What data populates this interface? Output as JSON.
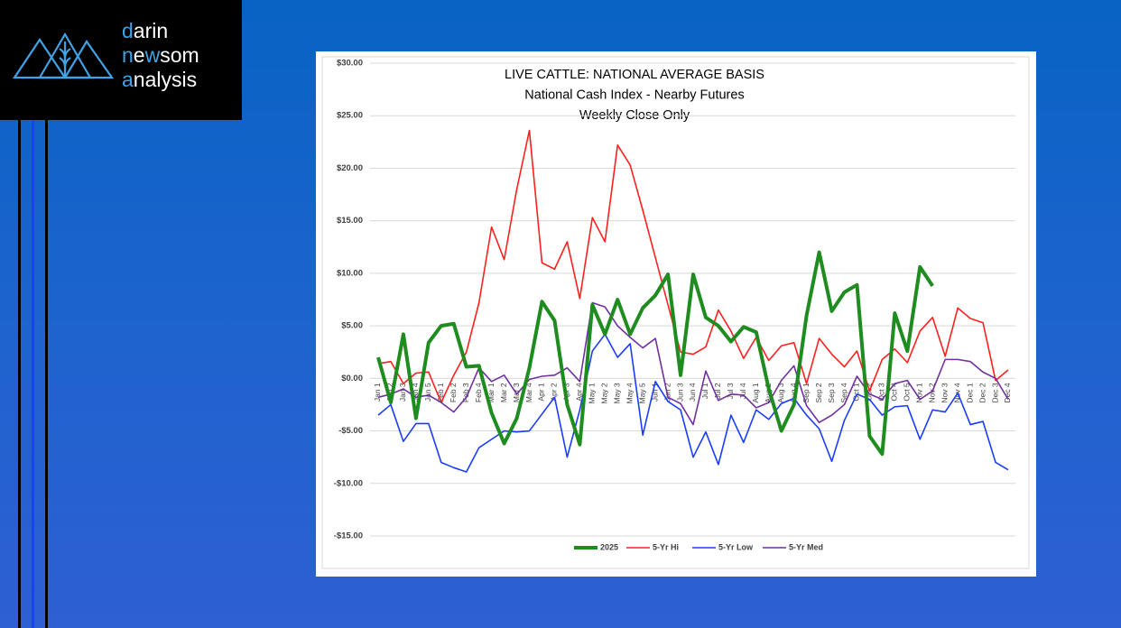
{
  "logo": {
    "lines": [
      [
        {
          "text": "d",
          "accent": true
        },
        {
          "text": "arin",
          "accent": false
        }
      ],
      [
        {
          "text": "n",
          "accent": true
        },
        {
          "text": "e",
          "accent": false
        },
        {
          "text": "w",
          "accent": true
        },
        {
          "text": "som",
          "accent": false
        }
      ],
      [
        {
          "text": "a",
          "accent": true
        },
        {
          "text": "nalysis",
          "accent": false
        }
      ]
    ]
  },
  "chart_data": {
    "type": "line",
    "title": [
      "LIVE CATTLE: NATIONAL AVERAGE BASIS",
      "National Cash Index - Nearby Futures",
      "Weekly Close Only"
    ],
    "categories": [
      "Jan 1",
      "Jan 2",
      "Jan 3",
      "Jan 4",
      "Jan 5",
      "Feb 1",
      "Feb 2",
      "Feb 3",
      "Feb 4",
      "Mar 1",
      "Mar 2",
      "Mar 3",
      "Mar 4",
      "Apr 1",
      "Apr 2",
      "Apr 3",
      "Apr 4",
      "May 1",
      "May 2",
      "May 3",
      "May 4",
      "May 5",
      "Jun 1",
      "Jun 2",
      "Jun 3",
      "Jun 4",
      "Jul 1",
      "Jul 2",
      "Jul 3",
      "Jul 4",
      "Aug 1",
      "Aug 2",
      "Aug 3",
      "Aug 4",
      "Sep 1",
      "Sep 2",
      "Sep 3",
      "Sep 4",
      "Oct 1",
      "Oct 2",
      "Oct 3",
      "Oct 4",
      "Oct 5",
      "Nov 1",
      "Nov 2",
      "Nov 3",
      "Nov 4",
      "Dec 1",
      "Dec 2",
      "Dec 3",
      "Dec 4"
    ],
    "series": [
      {
        "name": "2025",
        "color": "#1e8c1e",
        "width": 4,
        "values": [
          2.0,
          -2.3,
          4.2,
          -3.8,
          3.4,
          5.0,
          5.2,
          1.1,
          1.2,
          -3.3,
          -6.2,
          -3.8,
          1.0,
          7.3,
          5.5,
          -2.5,
          -6.3,
          7.0,
          4.2,
          7.5,
          4.2,
          6.7,
          7.9,
          9.9,
          0.3,
          9.9,
          5.8,
          5.0,
          3.5,
          4.9,
          4.4,
          -1.0,
          -5.0,
          -2.5,
          6.0,
          12.0,
          6.4,
          8.2,
          8.9,
          -5.5,
          -7.2,
          6.2,
          2.6,
          10.6,
          8.8,
          null,
          null,
          null,
          null,
          null,
          null
        ]
      },
      {
        "name": "5-Yr Hi",
        "color": "#ff1f1f",
        "width": 1.6,
        "values": [
          1.4,
          1.6,
          -0.5,
          0.5,
          0.6,
          -2.3,
          0.3,
          2.5,
          7.2,
          14.4,
          11.3,
          18.0,
          23.6,
          11.0,
          10.4,
          13.0,
          7.6,
          15.3,
          13.0,
          22.2,
          20.3,
          16.0,
          11.5,
          7.0,
          2.5,
          2.3,
          3.0,
          6.5,
          4.5,
          1.9,
          3.9,
          1.7,
          3.1,
          3.4,
          -0.5,
          3.8,
          2.3,
          1.1,
          2.6,
          -1.2,
          1.8,
          2.8,
          1.5,
          4.5,
          5.8,
          2.1,
          6.7,
          5.7,
          5.3,
          -0.2,
          0.8
        ]
      },
      {
        "name": "5-Yr Low",
        "color": "#1a3cff",
        "width": 1.6,
        "values": [
          -3.5,
          -2.5,
          -6.0,
          -4.3,
          -4.3,
          -8.0,
          -8.5,
          -8.9,
          -6.6,
          -5.8,
          -5.0,
          -5.1,
          -5.0,
          -3.4,
          -1.8,
          -7.5,
          -3.0,
          2.6,
          4.2,
          2.0,
          3.3,
          -5.4,
          -0.3,
          -2.2,
          -3.0,
          -7.5,
          -5.1,
          -8.2,
          -3.5,
          -6.1,
          -3.0,
          -3.9,
          -2.4,
          -1.9,
          -3.5,
          -4.8,
          -7.9,
          -4.0,
          -1.5,
          -2.0,
          -3.5,
          -2.7,
          -2.6,
          -5.8,
          -3.0,
          -3.2,
          -1.4,
          -4.4,
          -4.1,
          -8.0,
          -8.7
        ]
      },
      {
        "name": "5-Yr Med",
        "color": "#7030a0",
        "width": 1.6,
        "values": [
          -1.8,
          -1.5,
          -1.0,
          -1.8,
          -1.6,
          -2.3,
          -3.2,
          -1.8,
          1.0,
          -0.3,
          0.3,
          -1.5,
          -0.1,
          0.2,
          0.3,
          1.0,
          -0.3,
          7.2,
          6.8,
          5.0,
          3.9,
          2.9,
          3.8,
          -1.8,
          -2.4,
          -4.4,
          0.7,
          -2.1,
          -1.5,
          -1.6,
          -2.8,
          -2.3,
          -0.2,
          1.2,
          -2.6,
          -4.2,
          -3.5,
          -2.5,
          0.2,
          -1.5,
          -2.0,
          -0.5,
          -0.2,
          -2.0,
          -1.2,
          1.8,
          1.8,
          1.6,
          0.6,
          0.0,
          -2.0
        ]
      }
    ],
    "ylim": [
      -15,
      30
    ],
    "yticks": [
      {
        "value": 30,
        "label": "$30.00"
      },
      {
        "value": 25,
        "label": "$25.00"
      },
      {
        "value": 20,
        "label": "$20.00"
      },
      {
        "value": 15,
        "label": "$15.00"
      },
      {
        "value": 10,
        "label": "$10.00"
      },
      {
        "value": 5,
        "label": "$5.00"
      },
      {
        "value": 0,
        "label": "$0.00"
      },
      {
        "value": -5,
        "label": "-$5.00"
      },
      {
        "value": -10,
        "label": "-$10.00"
      },
      {
        "value": -15,
        "label": "-$15.00"
      }
    ],
    "grid": true,
    "legend": "bottom"
  }
}
